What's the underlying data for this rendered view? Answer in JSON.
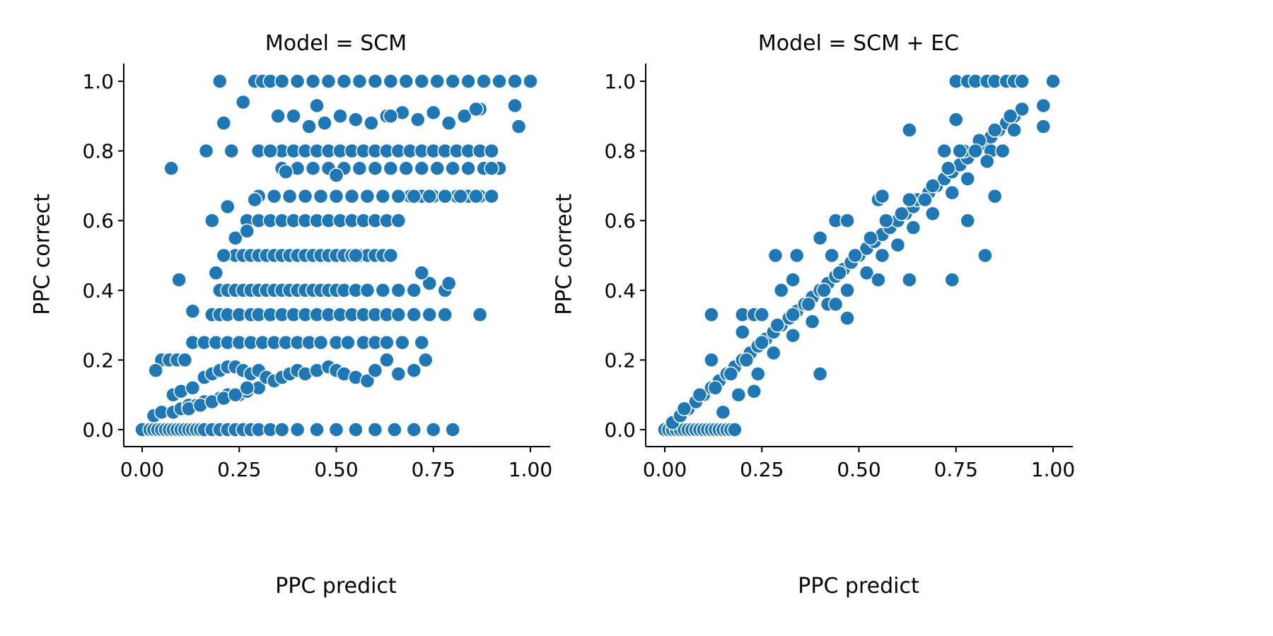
{
  "chart_data": [
    {
      "type": "scatter",
      "title": "Model = SCM",
      "xlabel": "PPC predict",
      "ylabel": "PPC correct",
      "xlim": [
        -0.05,
        1.05
      ],
      "ylim": [
        -0.05,
        1.05
      ],
      "xticks": [
        "0.00",
        "0.25",
        "0.50",
        "0.75",
        "1.00"
      ],
      "yticks": [
        "0.0",
        "0.2",
        "0.4",
        "0.6",
        "0.8",
        "1.0"
      ],
      "marker_color": "#1f77b4",
      "grid": false,
      "series": [
        {
          "x": [
            0.0,
            0.02,
            0.03,
            0.04,
            0.05,
            0.06,
            0.07,
            0.08,
            0.09,
            0.1,
            0.11,
            0.12,
            0.13,
            0.14,
            0.15,
            0.16,
            0.18,
            0.2,
            0.22,
            0.24,
            0.26,
            0.28,
            0.3,
            0.33,
            0.36,
            0.4,
            0.45,
            0.5,
            0.55,
            0.6,
            0.65,
            0.7,
            0.75,
            0.8,
            0.03,
            0.05,
            0.08,
            0.1,
            0.12,
            0.14,
            0.16,
            0.18,
            0.2,
            0.22,
            0.25,
            0.27,
            0.3,
            0.12,
            0.15,
            0.18,
            0.21,
            0.24,
            0.27,
            0.08,
            0.1,
            0.13,
            0.16,
            0.18,
            0.2,
            0.22,
            0.24,
            0.26,
            0.28,
            0.3,
            0.32,
            0.34,
            0.36,
            0.38,
            0.4,
            0.42,
            0.45,
            0.48,
            0.5,
            0.52,
            0.55,
            0.58,
            0.6,
            0.63,
            0.66,
            0.7,
            0.73,
            0.05,
            0.07,
            0.09,
            0.11,
            0.13,
            0.16,
            0.19,
            0.22,
            0.25,
            0.28,
            0.31,
            0.34,
            0.37,
            0.4,
            0.43,
            0.46,
            0.5,
            0.53,
            0.57,
            0.6,
            0.63,
            0.67,
            0.72,
            0.18,
            0.2,
            0.22,
            0.25,
            0.28,
            0.3,
            0.33,
            0.36,
            0.39,
            0.42,
            0.45,
            0.48,
            0.51,
            0.54,
            0.57,
            0.6,
            0.63,
            0.66,
            0.7,
            0.74,
            0.78,
            0.13,
            0.2,
            0.22,
            0.24,
            0.26,
            0.28,
            0.3,
            0.32,
            0.34,
            0.36,
            0.38,
            0.4,
            0.42,
            0.44,
            0.46,
            0.48,
            0.5,
            0.52,
            0.55,
            0.58,
            0.62,
            0.66,
            0.7,
            0.74,
            0.78,
            0.24,
            0.26,
            0.28,
            0.3,
            0.32,
            0.34,
            0.36,
            0.38,
            0.4,
            0.42,
            0.44,
            0.46,
            0.48,
            0.5,
            0.52,
            0.54,
            0.56,
            0.58,
            0.6,
            0.62,
            0.64,
            0.21,
            0.24,
            0.27,
            0.3,
            0.33,
            0.36,
            0.39,
            0.42,
            0.45,
            0.48,
            0.51,
            0.54,
            0.57,
            0.6,
            0.63,
            0.66,
            0.69,
            0.72,
            0.75,
            0.78,
            0.81,
            0.84,
            0.87,
            0.3,
            0.34,
            0.38,
            0.42,
            0.46,
            0.5,
            0.54,
            0.58,
            0.62,
            0.66,
            0.7,
            0.74,
            0.78,
            0.82,
            0.86,
            0.9,
            0.36,
            0.4,
            0.44,
            0.48,
            0.52,
            0.56,
            0.6,
            0.64,
            0.68,
            0.72,
            0.76,
            0.8,
            0.84,
            0.88,
            0.92,
            0.3,
            0.33,
            0.36,
            0.39,
            0.42,
            0.45,
            0.48,
            0.51,
            0.54,
            0.57,
            0.6,
            0.63,
            0.66,
            0.69,
            0.72,
            0.75,
            0.78,
            0.81,
            0.84,
            0.87,
            0.9,
            0.35,
            0.39,
            0.43,
            0.47,
            0.51,
            0.55,
            0.59,
            0.63,
            0.67,
            0.71,
            0.75,
            0.79,
            0.83,
            0.87,
            0.2,
            0.29,
            0.31,
            0.33,
            0.36,
            0.4,
            0.44,
            0.48,
            0.52,
            0.56,
            0.6,
            0.64,
            0.68,
            0.72,
            0.76,
            0.8,
            0.84,
            0.88,
            0.92,
            0.96,
            1.0,
            0.075,
            0.095,
            0.165,
            0.23,
            0.26,
            0.33,
            0.45,
            0.64,
            0.87,
            0.035,
            0.21,
            0.22,
            0.19,
            0.29,
            0.37,
            0.5,
            0.55,
            0.72,
            0.79,
            0.9,
            0.96,
            0.97,
            0.86,
            0.27,
            0.18
          ],
          "y": [
            0,
            0,
            0,
            0,
            0,
            0,
            0,
            0,
            0,
            0,
            0,
            0,
            0,
            0,
            0,
            0,
            0,
            0,
            0,
            0,
            0,
            0,
            0,
            0,
            0,
            0,
            0,
            0,
            0,
            0,
            0,
            0,
            0,
            0,
            0.04,
            0.05,
            0.05,
            0.06,
            0.07,
            0.07,
            0.08,
            0.08,
            0.09,
            0.1,
            0.1,
            0.11,
            0.12,
            0.06,
            0.07,
            0.08,
            0.09,
            0.1,
            0.12,
            0.1,
            0.11,
            0.12,
            0.15,
            0.16,
            0.17,
            0.18,
            0.18,
            0.17,
            0.16,
            0.17,
            0.15,
            0.14,
            0.15,
            0.16,
            0.17,
            0.16,
            0.17,
            0.18,
            0.17,
            0.16,
            0.15,
            0.14,
            0.17,
            0.2,
            0.16,
            0.17,
            0.2,
            0.2,
            0.2,
            0.2,
            0.2,
            0.25,
            0.25,
            0.25,
            0.25,
            0.25,
            0.25,
            0.25,
            0.25,
            0.25,
            0.25,
            0.25,
            0.25,
            0.25,
            0.25,
            0.25,
            0.25,
            0.25,
            0.25,
            0.25,
            0.33,
            0.33,
            0.33,
            0.33,
            0.33,
            0.33,
            0.33,
            0.33,
            0.33,
            0.33,
            0.33,
            0.33,
            0.33,
            0.33,
            0.33,
            0.33,
            0.33,
            0.33,
            0.33,
            0.33,
            0.33,
            0.34,
            0.4,
            0.4,
            0.4,
            0.4,
            0.4,
            0.4,
            0.4,
            0.4,
            0.4,
            0.4,
            0.4,
            0.4,
            0.4,
            0.4,
            0.4,
            0.4,
            0.4,
            0.4,
            0.4,
            0.4,
            0.4,
            0.4,
            0.42,
            0.4,
            0.5,
            0.5,
            0.5,
            0.5,
            0.5,
            0.5,
            0.5,
            0.5,
            0.5,
            0.5,
            0.5,
            0.5,
            0.5,
            0.5,
            0.5,
            0.5,
            0.5,
            0.5,
            0.5,
            0.5,
            0.5,
            0.5,
            0.55,
            0.6,
            0.6,
            0.6,
            0.6,
            0.6,
            0.6,
            0.6,
            0.6,
            0.6,
            0.6,
            0.6,
            0.6,
            0.6,
            0.6,
            0.67,
            0.67,
            0.67,
            0.67,
            0.67,
            0.67,
            0.67,
            0.67,
            0.67,
            0.67,
            0.67,
            0.67,
            0.67,
            0.67,
            0.67,
            0.67,
            0.67,
            0.67,
            0.67,
            0.67,
            0.67,
            0.67,
            0.67,
            0.75,
            0.75,
            0.75,
            0.75,
            0.75,
            0.75,
            0.75,
            0.75,
            0.75,
            0.75,
            0.75,
            0.75,
            0.75,
            0.75,
            0.75,
            0.8,
            0.8,
            0.8,
            0.8,
            0.8,
            0.8,
            0.8,
            0.8,
            0.8,
            0.8,
            0.8,
            0.8,
            0.8,
            0.8,
            0.8,
            0.8,
            0.8,
            0.8,
            0.8,
            0.8,
            0.8,
            0.9,
            0.9,
            0.87,
            0.88,
            0.9,
            0.89,
            0.88,
            0.9,
            0.91,
            0.89,
            0.91,
            0.88,
            0.9,
            0.92,
            1,
            1,
            1,
            1,
            1,
            1,
            1,
            1,
            1,
            1,
            1,
            1,
            1,
            1,
            1,
            1,
            1,
            1,
            1,
            1,
            1,
            0.75,
            0.43,
            0.8,
            0.8,
            0.94,
            0.8,
            0.93,
            0.9,
            0.33,
            0.17,
            0.88,
            0.64,
            0.45,
            0.66,
            0.74,
            0.73,
            0.5,
            0.45,
            0.42,
            0.75,
            0.93,
            0.87,
            0.92,
            0.57,
            0.6
          ]
        }
      ]
    },
    {
      "type": "scatter",
      "title": "Model = SCM + EC",
      "xlabel": "PPC predict",
      "ylabel": "PPC correct",
      "xlim": [
        -0.05,
        1.05
      ],
      "ylim": [
        -0.05,
        1.05
      ],
      "xticks": [
        "0.00",
        "0.25",
        "0.50",
        "0.75",
        "1.00"
      ],
      "yticks": [
        "0.0",
        "0.2",
        "0.4",
        "0.6",
        "0.8",
        "1.0"
      ],
      "marker_color": "#1f77b4",
      "grid": false,
      "series": [
        {
          "x": [
            0.0,
            0.01,
            0.02,
            0.03,
            0.04,
            0.05,
            0.06,
            0.07,
            0.08,
            0.09,
            0.1,
            0.11,
            0.12,
            0.13,
            0.14,
            0.15,
            0.16,
            0.17,
            0.18,
            0.02,
            0.04,
            0.06,
            0.08,
            0.1,
            0.12,
            0.14,
            0.16,
            0.18,
            0.2,
            0.22,
            0.24,
            0.26,
            0.28,
            0.3,
            0.32,
            0.34,
            0.36,
            0.38,
            0.4,
            0.42,
            0.44,
            0.46,
            0.48,
            0.5,
            0.52,
            0.54,
            0.56,
            0.58,
            0.6,
            0.62,
            0.64,
            0.66,
            0.68,
            0.7,
            0.72,
            0.74,
            0.76,
            0.78,
            0.8,
            0.82,
            0.84,
            0.86,
            0.88,
            0.9,
            0.92,
            0.05,
            0.09,
            0.13,
            0.17,
            0.21,
            0.25,
            0.29,
            0.33,
            0.37,
            0.41,
            0.45,
            0.49,
            0.53,
            0.57,
            0.61,
            0.65,
            0.69,
            0.73,
            0.77,
            0.81,
            0.85,
            0.89,
            0.12,
            0.2,
            0.23,
            0.25,
            0.3,
            0.34,
            0.4,
            0.43,
            0.44,
            0.47,
            0.55,
            0.63,
            0.67,
            0.72,
            0.76,
            0.8,
            0.84,
            0.87,
            0.9,
            0.15,
            0.19,
            0.24,
            0.28,
            0.33,
            0.38,
            0.42,
            0.47,
            0.52,
            0.56,
            0.6,
            0.64,
            0.69,
            0.74,
            0.78,
            0.83,
            0.75,
            0.78,
            0.8,
            0.83,
            0.85,
            0.88,
            0.9,
            0.92,
            1.0,
            0.12,
            0.2,
            0.23,
            0.285,
            0.4,
            0.44,
            0.47,
            0.55,
            0.56,
            0.63,
            0.74,
            0.75,
            0.78,
            0.825,
            0.85,
            0.975,
            0.975,
            0.63,
            0.33
          ],
          "y": [
            0,
            0,
            0,
            0,
            0,
            0,
            0,
            0,
            0,
            0,
            0,
            0,
            0,
            0,
            0,
            0,
            0,
            0,
            0,
            0.02,
            0.04,
            0.06,
            0.08,
            0.1,
            0.12,
            0.14,
            0.16,
            0.18,
            0.2,
            0.22,
            0.24,
            0.26,
            0.28,
            0.3,
            0.32,
            0.34,
            0.36,
            0.38,
            0.4,
            0.42,
            0.44,
            0.46,
            0.48,
            0.5,
            0.52,
            0.54,
            0.56,
            0.58,
            0.6,
            0.62,
            0.64,
            0.66,
            0.68,
            0.7,
            0.72,
            0.74,
            0.76,
            0.78,
            0.8,
            0.82,
            0.84,
            0.86,
            0.88,
            0.9,
            0.92,
            0.06,
            0.1,
            0.12,
            0.16,
            0.2,
            0.25,
            0.3,
            0.33,
            0.36,
            0.4,
            0.45,
            0.5,
            0.55,
            0.6,
            0.62,
            0.66,
            0.7,
            0.75,
            0.8,
            0.83,
            0.86,
            0.9,
            0.2,
            0.33,
            0.33,
            0.33,
            0.4,
            0.5,
            0.55,
            0.5,
            0.6,
            0.6,
            0.66,
            0.66,
            0.66,
            0.8,
            0.8,
            0.8,
            0.8,
            0.8,
            0.86,
            0.05,
            0.1,
            0.16,
            0.22,
            0.27,
            0.31,
            0.36,
            0.4,
            0.45,
            0.5,
            0.53,
            0.58,
            0.62,
            0.68,
            0.72,
            0.77,
            1,
            1,
            1,
            1,
            1,
            1,
            1,
            1,
            1,
            0.33,
            0.28,
            0.11,
            0.5,
            0.16,
            0.36,
            0.32,
            0.43,
            0.67,
            0.43,
            0.43,
            0.89,
            0.6,
            0.5,
            0.67,
            0.87,
            0.93,
            0.86,
            0.43
          ]
        }
      ]
    }
  ]
}
